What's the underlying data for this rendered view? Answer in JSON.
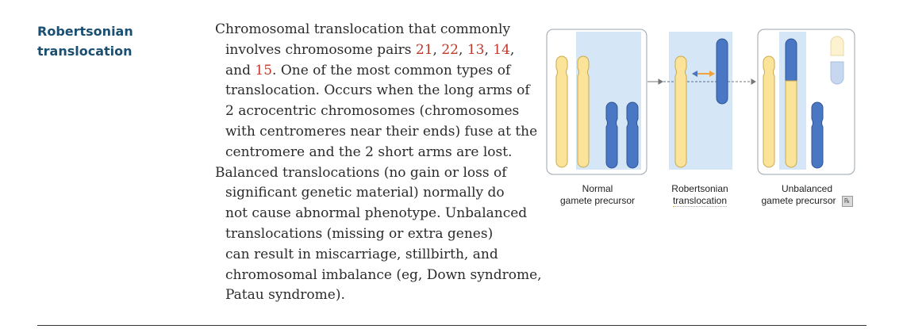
{
  "term": {
    "line1": "Robertsonian",
    "line2": "translocation"
  },
  "description": {
    "lines": [
      "Chromosomal translocation that commonly",
      "involves chromosome pairs 21, 22, 13, 14,",
      "and 15. One of the most common types of",
      "translocation. Occurs when the long arms of",
      "2 acrocentric chromosomes (chromosomes",
      "with centromeres near their ends) fuse at the",
      "centromere and the 2 short arms are lost.",
      "Balanced translocations (no gain or loss of",
      "significant genetic material) normally do",
      "not cause abnormal phenotype. Unbalanced",
      "translocations (missing or extra genes)",
      "can result in miscarriage, stillbirth, and",
      "chromosomal imbalance (eg, Down syndrome,",
      "Patau syndrome)."
    ],
    "highlighted_numbers": [
      "21",
      "22",
      "13",
      "14",
      "15"
    ]
  },
  "figure": {
    "captions": {
      "normal_line1": "Normal",
      "normal_line2": "gamete precursor",
      "robertsonian_line1": "Robertsonian",
      "robertsonian_line2": "translocation",
      "unbalanced_line1": "Unbalanced",
      "unbalanced_line2": "gamete precursor"
    },
    "icon": "image-credit-icon",
    "colors": {
      "chromosome_yellow": "#fbe39a",
      "chromosome_blue": "#4a77c3",
      "highlight_panel": "#d5e6f7",
      "arrow_orange": "#f2a23a"
    }
  }
}
